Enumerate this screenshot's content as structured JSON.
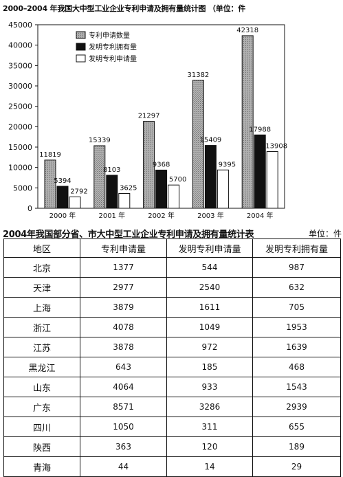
{
  "chart_title": "2000–2004 年我国大中型工业企业专利申请及拥有量统计图 （单位：件",
  "chart_data": {
    "type": "bar",
    "categories": [
      "2000 年",
      "2001 年",
      "2002 年",
      "2003 年",
      "2004 年"
    ],
    "series": [
      {
        "name": "专利申请数量",
        "values": [
          11819,
          15339,
          21297,
          31382,
          42318
        ],
        "color": "#a8a8a8"
      },
      {
        "name": "发明专利拥有量",
        "values": [
          5394,
          8103,
          9368,
          15409,
          17988
        ],
        "color": "#111111"
      },
      {
        "name": "发明专利申请量",
        "values": [
          2792,
          3625,
          5700,
          9395,
          13908
        ],
        "color": "#ffffff"
      }
    ],
    "ylim": [
      0,
      45000
    ],
    "yticks": [
      "0",
      "5000",
      "10000",
      "15000",
      "20000",
      "25000",
      "30000",
      "35000",
      "40000",
      "45000"
    ],
    "legend_position": "top-left",
    "grid": false
  },
  "table": {
    "title": "2004年我国部分省、市大中型工业企业专利申请及拥有量统计表",
    "unit": "单位：件",
    "headers": [
      "地区",
      "专利申请量",
      "发明专利申请量",
      "发明专利拥有量"
    ],
    "rows": [
      [
        "北京",
        "1377",
        "544",
        "987"
      ],
      [
        "天津",
        "2977",
        "2540",
        "632"
      ],
      [
        "上海",
        "3879",
        "1611",
        "705"
      ],
      [
        "浙江",
        "4078",
        "1049",
        "1953"
      ],
      [
        "江苏",
        "3878",
        "972",
        "1639"
      ],
      [
        "黑龙江",
        "643",
        "185",
        "468"
      ],
      [
        "山东",
        "4064",
        "933",
        "1543"
      ],
      [
        "广东",
        "8571",
        "3286",
        "2939"
      ],
      [
        "四川",
        "1050",
        "311",
        "655"
      ],
      [
        "陕西",
        "363",
        "120",
        "189"
      ],
      [
        "青海",
        "44",
        "14",
        "29"
      ]
    ]
  }
}
